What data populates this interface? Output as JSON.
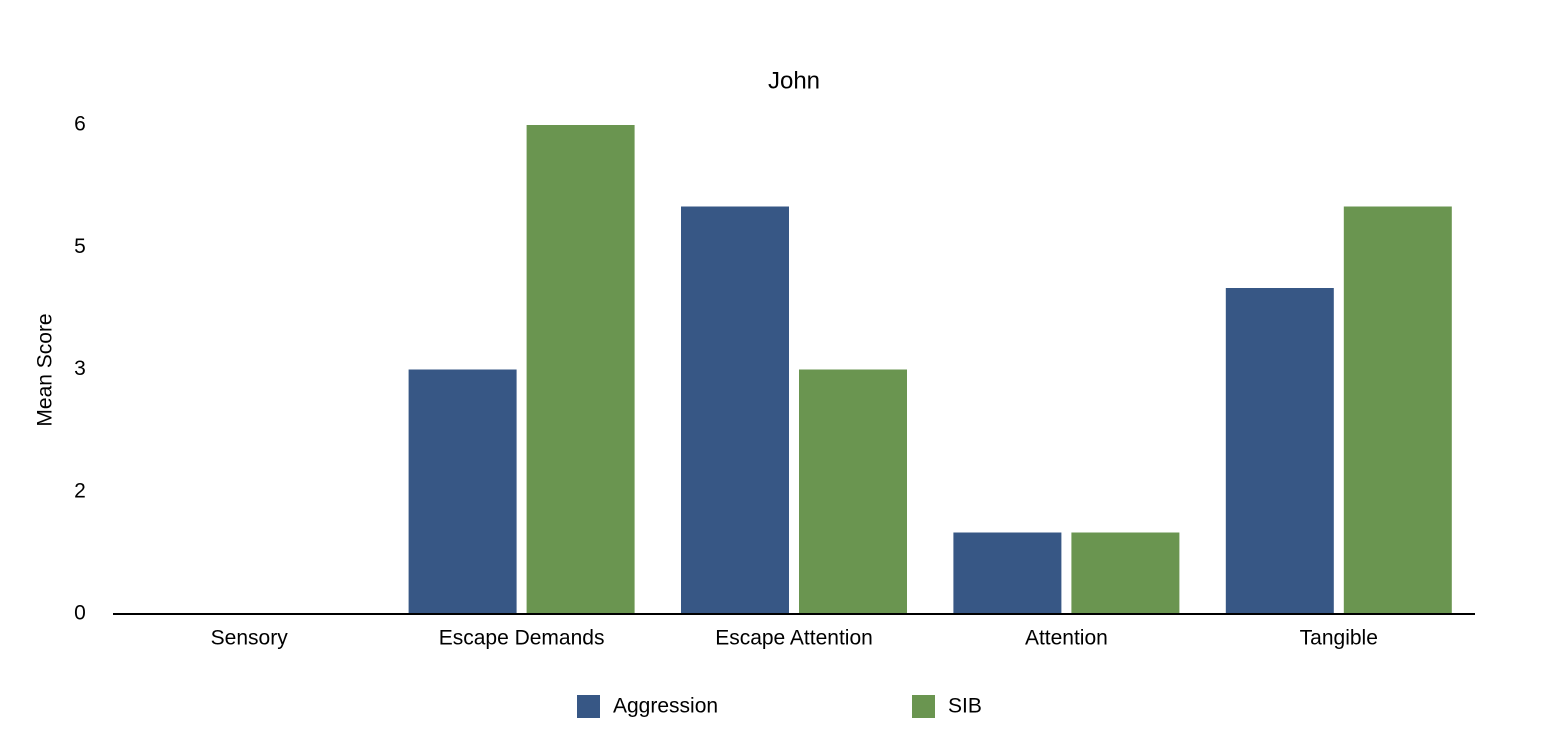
{
  "chart_data": {
    "type": "bar",
    "title": "John",
    "y_label": "Mean Score",
    "categories": [
      "Sensory",
      "Escape Demands",
      "Escape Attention",
      "Attention",
      "Tangible"
    ],
    "series": [
      {
        "name": "Aggression",
        "color": "#375785",
        "values": [
          0,
          3,
          5,
          1,
          4
        ]
      },
      {
        "name": "SIB",
        "color": "#6a9550",
        "values": [
          0,
          6,
          3,
          1,
          5
        ]
      }
    ],
    "ylim": [
      0,
      6
    ],
    "yticks": [
      0,
      {
        "value": 1.5,
        "label": "2"
      },
      3,
      {
        "value": 4.5,
        "label": "5"
      },
      6
    ],
    "grid": false
  }
}
